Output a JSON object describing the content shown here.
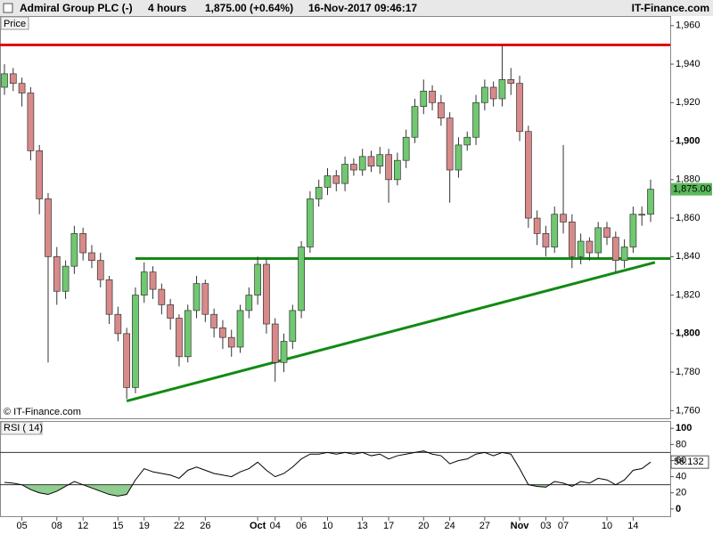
{
  "header": {
    "title": "Admiral Group PLC (-)",
    "interval": "4 hours",
    "quote": "1,875.00 (+0.64%)",
    "timestamp": "16-Nov-2017 09:46:17",
    "brand": "IT-Finance.com"
  },
  "chart_data": [
    {
      "type": "candlestick",
      "panel_label": "Price",
      "watermark": "© IT-Finance.com",
      "x_labels": [
        null,
        null,
        "05",
        null,
        null,
        null,
        "08",
        null,
        null,
        "12",
        null,
        null,
        null,
        "15",
        null,
        null,
        "19",
        null,
        null,
        null,
        "22",
        null,
        null,
        "26",
        null,
        null,
        null,
        null,
        null,
        "Oct",
        null,
        "04",
        null,
        null,
        "06",
        null,
        null,
        "10",
        null,
        null,
        null,
        "13",
        null,
        null,
        "17",
        null,
        null,
        null,
        "20",
        null,
        null,
        "24",
        null,
        null,
        null,
        "27",
        null,
        null,
        null,
        "Nov",
        null,
        null,
        "03",
        null,
        "07",
        null,
        null,
        null,
        null,
        "10",
        null,
        null,
        "14",
        null,
        null
      ],
      "open": [
        1928,
        1935,
        1930,
        1925,
        1895,
        1870,
        1840,
        1822,
        1835,
        1852,
        1842,
        1838,
        1828,
        1810,
        1800,
        1772,
        1820,
        1832,
        1823,
        1815,
        1808,
        1788,
        1812,
        1826,
        1810,
        1803,
        1798,
        1793,
        1812,
        1820,
        1836,
        1805,
        1785,
        1796,
        1812,
        1845,
        1870,
        1876,
        1882,
        1878,
        1888,
        1885,
        1892,
        1887,
        1893,
        1880,
        1890,
        1902,
        1918,
        1926,
        1920,
        1912,
        1885,
        1898,
        1902,
        1920,
        1928,
        1922,
        1932,
        1930,
        1905,
        1860,
        1852,
        1845,
        1862,
        1858,
        1840,
        1848,
        1842,
        1855,
        1850,
        1838,
        1845,
        1862,
        1862
      ],
      "high": [
        1940,
        1938,
        1933,
        1928,
        1898,
        1873,
        1845,
        1838,
        1856,
        1855,
        1846,
        1842,
        1830,
        1814,
        1803,
        1824,
        1837,
        1835,
        1826,
        1818,
        1810,
        1815,
        1830,
        1828,
        1813,
        1807,
        1802,
        1815,
        1824,
        1840,
        1839,
        1808,
        1800,
        1815,
        1848,
        1874,
        1880,
        1886,
        1885,
        1892,
        1891,
        1896,
        1895,
        1897,
        1896,
        1894,
        1906,
        1922,
        1932,
        1929,
        1924,
        1915,
        1902,
        1905,
        1924,
        1932,
        1931,
        1950,
        1938,
        1934,
        1908,
        1864,
        1856,
        1866,
        1898,
        1862,
        1852,
        1850,
        1858,
        1858,
        1853,
        1849,
        1866,
        1866,
        1880
      ],
      "low": [
        1924,
        1926,
        1918,
        1890,
        1862,
        1785,
        1815,
        1818,
        1831,
        1838,
        1834,
        1824,
        1805,
        1796,
        1766,
        1769,
        1816,
        1818,
        1810,
        1802,
        1783,
        1785,
        1808,
        1806,
        1798,
        1792,
        1788,
        1790,
        1808,
        1815,
        1800,
        1775,
        1780,
        1792,
        1808,
        1842,
        1866,
        1872,
        1874,
        1874,
        1882,
        1882,
        1884,
        1883,
        1868,
        1877,
        1886,
        1899,
        1914,
        1916,
        1908,
        1868,
        1881,
        1895,
        1898,
        1916,
        1918,
        1918,
        1924,
        1900,
        1855,
        1846,
        1840,
        1842,
        1852,
        1834,
        1836,
        1838,
        1839,
        1846,
        1832,
        1834,
        1842,
        1856,
        1858
      ],
      "close": [
        1935,
        1930,
        1925,
        1895,
        1870,
        1840,
        1822,
        1835,
        1852,
        1842,
        1838,
        1828,
        1810,
        1800,
        1772,
        1820,
        1832,
        1823,
        1815,
        1808,
        1788,
        1812,
        1826,
        1810,
        1803,
        1798,
        1793,
        1812,
        1820,
        1836,
        1805,
        1785,
        1796,
        1812,
        1845,
        1870,
        1876,
        1882,
        1878,
        1888,
        1885,
        1892,
        1887,
        1893,
        1880,
        1890,
        1902,
        1918,
        1926,
        1920,
        1912,
        1885,
        1898,
        1902,
        1920,
        1928,
        1922,
        1932,
        1930,
        1905,
        1860,
        1852,
        1845,
        1862,
        1858,
        1840,
        1848,
        1842,
        1855,
        1850,
        1838,
        1845,
        1862,
        1862,
        1875
      ],
      "up_color": "#70c870",
      "down_color": "#d88a8a",
      "ylim": [
        1756,
        1965
      ],
      "yticks": [
        {
          "value": 1760,
          "label": "1,760"
        },
        {
          "value": 1780,
          "label": "1,780"
        },
        {
          "value": 1800,
          "label": "1,800"
        },
        {
          "value": 1820,
          "label": "1,820"
        },
        {
          "value": 1840,
          "label": "1,840"
        },
        {
          "value": 1860,
          "label": "1,860"
        },
        {
          "value": 1880,
          "label": "1,880"
        },
        {
          "value": 1900,
          "label": "1,900"
        },
        {
          "value": 1920,
          "label": "1,920"
        },
        {
          "value": 1940,
          "label": "1,940"
        },
        {
          "value": 1960,
          "label": "1,960"
        }
      ],
      "last_price": {
        "value": 1875,
        "label": "1,875.00",
        "color": "#5cb85c"
      },
      "hlines": [
        {
          "value": 1950,
          "color": "#e01010"
        },
        {
          "value": 1839,
          "color": "#138a13",
          "from": 15
        }
      ],
      "trendline": {
        "from": [
          14,
          1765
        ],
        "to": [
          74.5,
          1837
        ],
        "color": "#138a13"
      }
    },
    {
      "type": "line",
      "panel_label": "RSI ( 14)",
      "color": "#000000",
      "values": [
        33,
        32,
        30,
        24,
        20,
        18,
        22,
        28,
        34,
        30,
        26,
        22,
        18,
        16,
        18,
        36,
        50,
        46,
        44,
        42,
        38,
        48,
        52,
        48,
        44,
        42,
        40,
        46,
        50,
        58,
        48,
        40,
        44,
        52,
        62,
        68,
        68,
        70,
        68,
        70,
        68,
        70,
        66,
        68,
        62,
        66,
        68,
        70,
        72,
        68,
        66,
        56,
        60,
        62,
        68,
        70,
        66,
        70,
        68,
        50,
        30,
        28,
        27,
        34,
        32,
        28,
        34,
        32,
        38,
        36,
        30,
        36,
        48,
        50,
        58.132
      ],
      "levels": [
        30,
        70
      ],
      "low_fill": "#8fce8f",
      "high_fill": "#c9a0e0",
      "ylim": [
        -9,
        108
      ],
      "yticks": [
        0,
        20,
        40,
        60,
        80,
        100
      ]
    }
  ]
}
